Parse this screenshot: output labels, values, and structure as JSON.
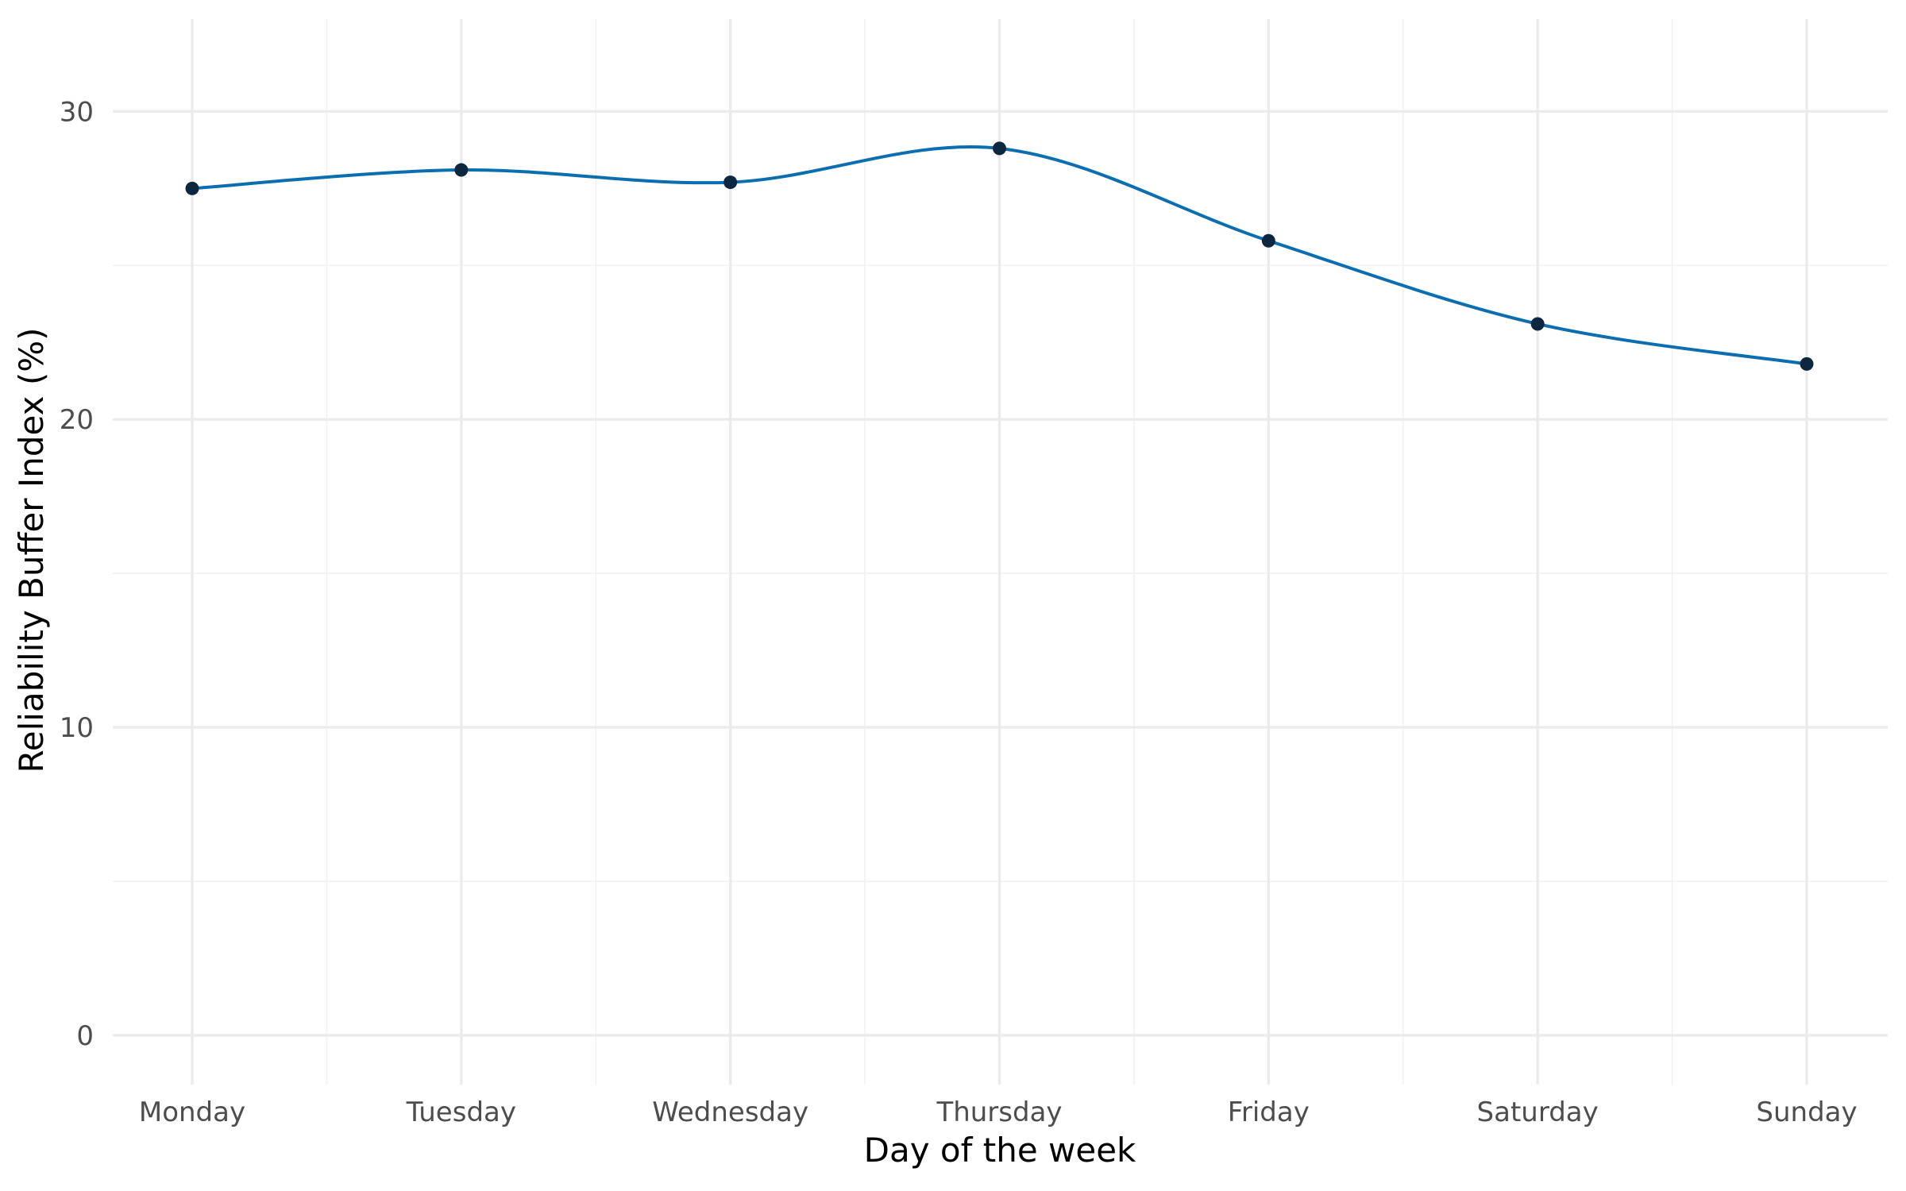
{
  "chart_data": {
    "type": "line",
    "categories": [
      "Monday",
      "Tuesday",
      "Wednesday",
      "Thursday",
      "Friday",
      "Saturday",
      "Sunday"
    ],
    "series": [
      {
        "values": [
          27.5,
          28.1,
          27.7,
          28.8,
          25.8,
          23.1,
          21.8
        ]
      }
    ],
    "xlabel": "Day of the week",
    "ylabel": "Reliability Buffer Index (%)",
    "ylim": [
      -1.6,
      33.0
    ],
    "yticks": [
      0,
      10,
      20,
      30
    ],
    "grid": true,
    "line_color": "#0a6eb0",
    "point_color": "#0d2740",
    "smoothed": true
  }
}
